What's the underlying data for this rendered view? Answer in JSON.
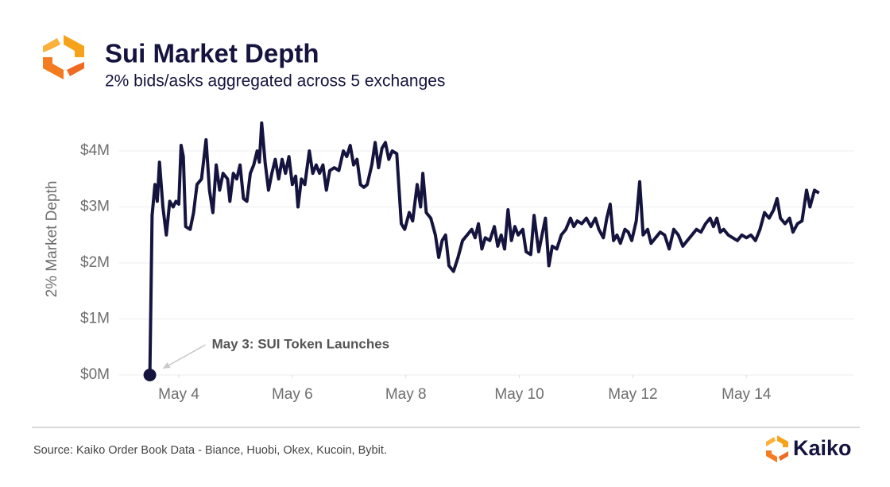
{
  "chart_data": {
    "type": "line",
    "title": "Sui Market Depth",
    "subtitle": "2% bids/asks aggregated across 5 exchanges",
    "ylabel": "2% Market Depth",
    "annotation": "May 3: SUI Token Launches",
    "color": "#14143f",
    "grid": true,
    "xlim": [
      2.95,
      15.9
    ],
    "ylim": [
      0,
      4.6
    ],
    "xticks": [
      {
        "value": 4,
        "label": "May 4"
      },
      {
        "value": 6,
        "label": "May 6"
      },
      {
        "value": 8,
        "label": "May 8"
      },
      {
        "value": 10,
        "label": "May 10"
      },
      {
        "value": 12,
        "label": "May 12"
      },
      {
        "value": 14,
        "label": "May 14"
      }
    ],
    "yticks": [
      {
        "value": 0,
        "label": "$0M"
      },
      {
        "value": 1,
        "label": "$1M"
      },
      {
        "value": 2,
        "label": "$2M"
      },
      {
        "value": 3,
        "label": "$3M"
      },
      {
        "value": 4,
        "label": "$4M"
      }
    ],
    "x": [
      3.49,
      3.53,
      3.58,
      3.62,
      3.66,
      3.72,
      3.78,
      3.84,
      3.9,
      3.95,
      4.0,
      4.04,
      4.08,
      4.12,
      4.2,
      4.26,
      4.32,
      4.4,
      4.48,
      4.54,
      4.6,
      4.66,
      4.72,
      4.78,
      4.86,
      4.9,
      4.96,
      5.02,
      5.08,
      5.14,
      5.2,
      5.26,
      5.32,
      5.38,
      5.42,
      5.46,
      5.52,
      5.58,
      5.64,
      5.7,
      5.76,
      5.82,
      5.88,
      5.94,
      6.0,
      6.06,
      6.1,
      6.16,
      6.22,
      6.3,
      6.36,
      6.42,
      6.48,
      6.54,
      6.6,
      6.66,
      6.74,
      6.82,
      6.9,
      6.96,
      7.02,
      7.08,
      7.14,
      7.2,
      7.26,
      7.32,
      7.4,
      7.46,
      7.52,
      7.58,
      7.64,
      7.7,
      7.76,
      7.84,
      7.92,
      7.98,
      8.06,
      8.12,
      8.2,
      8.26,
      8.3,
      8.36,
      8.44,
      8.52,
      8.58,
      8.64,
      8.7,
      8.76,
      8.84,
      8.92,
      9.0,
      9.08,
      9.16,
      9.22,
      9.28,
      9.34,
      9.4,
      9.48,
      9.56,
      9.62,
      9.68,
      9.74,
      9.8,
      9.86,
      9.92,
      9.98,
      10.06,
      10.12,
      10.2,
      10.26,
      10.34,
      10.4,
      10.46,
      10.52,
      10.58,
      10.66,
      10.74,
      10.82,
      10.9,
      10.96,
      11.02,
      11.1,
      11.18,
      11.26,
      11.34,
      11.4,
      11.48,
      11.54,
      11.6,
      11.66,
      11.72,
      11.78,
      11.86,
      11.92,
      11.98,
      12.06,
      12.12,
      12.18,
      12.26,
      12.32,
      12.4,
      12.48,
      12.56,
      12.64,
      12.72,
      12.8,
      12.88,
      12.96,
      13.04,
      13.12,
      13.2,
      13.28,
      13.36,
      13.42,
      13.48,
      13.54,
      13.6,
      13.68,
      13.76,
      13.84,
      13.92,
      14.0,
      14.08,
      14.16,
      14.24,
      14.32,
      14.4,
      14.48,
      14.54,
      14.6,
      14.68,
      14.76,
      14.82,
      14.9,
      14.98,
      15.06,
      15.12,
      15.2,
      15.28
    ],
    "values": [
      0,
      2.85,
      3.4,
      3.1,
      3.8,
      3.0,
      2.5,
      3.1,
      3.0,
      3.1,
      3.05,
      4.1,
      3.9,
      2.65,
      2.6,
      2.9,
      3.4,
      3.5,
      4.2,
      3.3,
      2.9,
      3.75,
      3.3,
      3.6,
      3.5,
      3.1,
      3.6,
      3.5,
      3.75,
      3.15,
      3.1,
      3.6,
      3.75,
      4.0,
      3.8,
      4.5,
      3.8,
      3.3,
      3.6,
      3.85,
      3.5,
      3.85,
      3.6,
      3.9,
      3.4,
      3.55,
      3.0,
      3.5,
      3.4,
      4.0,
      3.6,
      3.75,
      3.6,
      3.75,
      3.3,
      3.65,
      3.7,
      3.65,
      4.0,
      3.9,
      4.1,
      3.75,
      3.85,
      3.4,
      3.35,
      3.4,
      3.75,
      4.15,
      3.7,
      4.05,
      4.15,
      3.85,
      4.0,
      3.95,
      2.7,
      2.6,
      2.9,
      2.75,
      3.4,
      3.0,
      3.6,
      2.9,
      2.8,
      2.5,
      2.1,
      2.4,
      2.5,
      1.95,
      1.85,
      2.1,
      2.4,
      2.5,
      2.6,
      2.45,
      2.7,
      2.25,
      2.45,
      2.4,
      2.65,
      2.3,
      2.5,
      2.25,
      2.95,
      2.4,
      2.65,
      2.5,
      2.6,
      2.2,
      2.15,
      2.85,
      2.2,
      2.5,
      2.8,
      1.95,
      2.3,
      2.25,
      2.5,
      2.6,
      2.8,
      2.65,
      2.75,
      2.7,
      2.8,
      2.65,
      2.8,
      2.6,
      2.45,
      2.8,
      3.05,
      2.4,
      2.5,
      2.35,
      2.6,
      2.55,
      2.4,
      2.75,
      3.45,
      2.5,
      2.6,
      2.35,
      2.45,
      2.55,
      2.5,
      2.25,
      2.6,
      2.5,
      2.3,
      2.4,
      2.5,
      2.6,
      2.55,
      2.7,
      2.8,
      2.65,
      2.8,
      2.55,
      2.6,
      2.5,
      2.45,
      2.4,
      2.5,
      2.45,
      2.5,
      2.4,
      2.6,
      2.9,
      2.8,
      2.95,
      3.15,
      2.8,
      2.7,
      2.8,
      2.55,
      2.7,
      2.75,
      3.3,
      3.0,
      3.3,
      3.25
    ]
  },
  "source": "Source: Kaiko Order Book Data - Biance, Huobi, Okex, Kucoin, Bybit.",
  "brand": "Kaiko"
}
